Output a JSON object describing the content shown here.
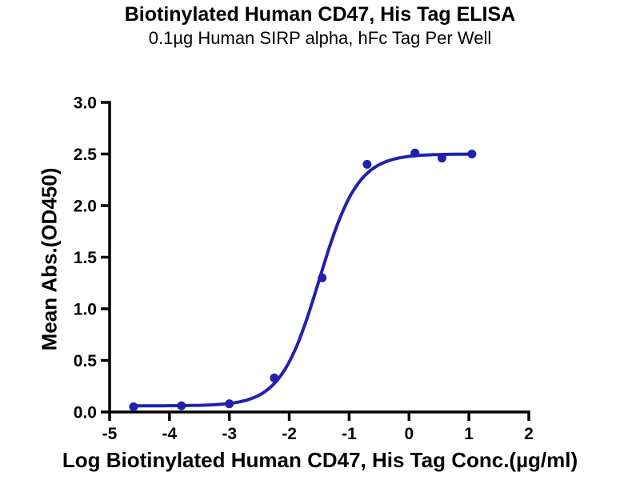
{
  "page": {
    "background": "#ffffff"
  },
  "chart_data": {
    "type": "scatter",
    "title": "Biotinylated Human CD47, His Tag ELISA",
    "subtitle": "0.1µg Human SIRP alpha, hFc Tag Per Well",
    "xlabel": "Log Biotinylated Human CD47, His Tag Conc.(µg/ml)",
    "ylabel": "Mean Abs.(OD450)",
    "xlim": [
      -5,
      2
    ],
    "ylim": [
      0,
      3
    ],
    "xticks": [
      -5,
      -4,
      -3,
      -2,
      -1,
      0,
      1,
      2
    ],
    "xtick_labels": [
      "-5",
      "-4",
      "-3",
      "-2",
      "-1",
      "0",
      "1",
      "2"
    ],
    "yticks": [
      0,
      0.5,
      1,
      1.5,
      2,
      2.5,
      3
    ],
    "ytick_labels": [
      "0.0",
      "0.5",
      "1.0",
      "1.5",
      "2.0",
      "2.5",
      "3.0"
    ],
    "grid": false,
    "legend": "none",
    "axis_color": "#000000",
    "series": [
      {
        "color": "#2121ad",
        "marker": "circle",
        "points": [
          {
            "x": -4.6,
            "y": 0.05
          },
          {
            "x": -3.8,
            "y": 0.06
          },
          {
            "x": -3.0,
            "y": 0.08
          },
          {
            "x": -2.25,
            "y": 0.33
          },
          {
            "x": -1.45,
            "y": 1.3
          },
          {
            "x": -0.7,
            "y": 2.4
          },
          {
            "x": 0.1,
            "y": 2.51
          },
          {
            "x": 0.55,
            "y": 2.46
          },
          {
            "x": 1.05,
            "y": 2.5
          }
        ],
        "fit": {
          "model": "4PL",
          "bottom": 0.06,
          "top": 2.5,
          "log_ec50": -1.5,
          "hill": 1.35,
          "x_start": -4.6,
          "x_end": 1.05
        }
      }
    ]
  }
}
